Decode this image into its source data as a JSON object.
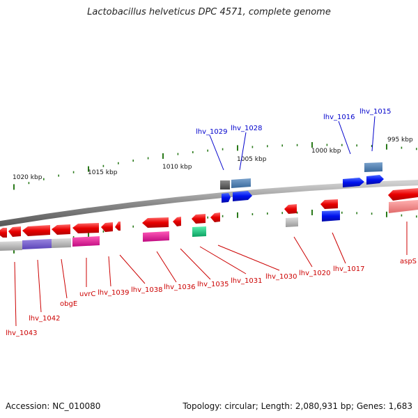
{
  "title": "Lactobacillus helveticus DPC 4571, complete genome",
  "footer": {
    "accession": "Accession: NC_010080",
    "summary": "Topology: circular; Length: 2,080,931 bp; Genes: 1,683"
  },
  "colors": {
    "forward_label": "#0000cc",
    "reverse_label": "#cc0000",
    "tick": "#2a7a1a",
    "backbone": "#888888"
  },
  "scale_labels": [
    "1020 kbp",
    "1015 kbp",
    "1010 kbp",
    "1005 kbp",
    "1000 kbp",
    "995 kbp"
  ],
  "forward_gene_labels": [
    "lhv_1029",
    "lhv_1028",
    "lhv_1016",
    "lhv_1015"
  ],
  "reverse_gene_labels": [
    "lhv_1043",
    "lhv_1042",
    "obgE",
    "uvrC",
    "lhv_1039",
    "lhv_1038",
    "lhv_1036",
    "lhv_1035",
    "lhv_1031",
    "lhv_1030",
    "lhv_1020",
    "lhv_1017",
    "aspS"
  ]
}
